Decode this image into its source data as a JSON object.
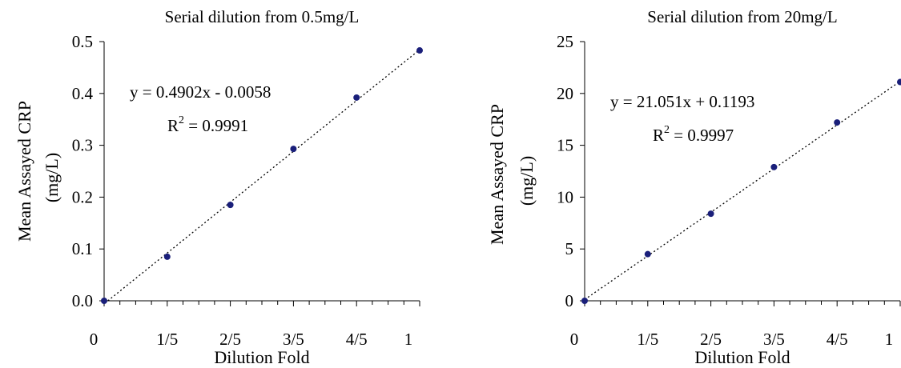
{
  "chart_data": [
    {
      "type": "scatter",
      "title": "Serial dilution from 0.5mg/L",
      "xlabel": "Dilution Fold",
      "ylabel_line1": "Mean Assayed CRP",
      "ylabel_line2": "(mg/L)",
      "x_ticks": [
        "0",
        "1/5",
        "2/5",
        "3/5",
        "4/5",
        "1"
      ],
      "y_ticks": [
        "0.0",
        "0.1",
        "0.2",
        "0.3",
        "0.4",
        "0.5"
      ],
      "xlim": [
        0,
        1
      ],
      "ylim": [
        0,
        0.5
      ],
      "x": [
        0,
        0.2,
        0.4,
        0.6,
        0.8,
        1.0
      ],
      "y": [
        0.0,
        0.085,
        0.185,
        0.293,
        0.392,
        0.483
      ],
      "trendline": {
        "slope": 0.4902,
        "intercept": -0.0058,
        "style": "dotted"
      },
      "equation": "y = 0.4902x - 0.0058",
      "r2_prefix": "R",
      "r2_exp": "2",
      "r2_value": " = 0.9991",
      "marker_color": "#1a1f7a",
      "grid": false
    },
    {
      "type": "scatter",
      "title": "Serial dilution from 20mg/L",
      "xlabel": "Dilution Fold",
      "ylabel_line1": "Mean Assayed CRP",
      "ylabel_line2": "(mg/L)",
      "x_ticks": [
        "0",
        "1/5",
        "2/5",
        "3/5",
        "4/5",
        "1"
      ],
      "y_ticks": [
        "0",
        "5",
        "10",
        "15",
        "20",
        "25"
      ],
      "xlim": [
        0,
        1
      ],
      "ylim": [
        0,
        25
      ],
      "x": [
        0,
        0.2,
        0.4,
        0.6,
        0.8,
        1.0
      ],
      "y": [
        0.0,
        4.5,
        8.4,
        12.9,
        17.2,
        21.1
      ],
      "trendline": {
        "slope": 21.051,
        "intercept": 0.1193,
        "style": "dotted"
      },
      "equation": "y = 21.051x + 0.1193",
      "r2_prefix": "R",
      "r2_exp": "2",
      "r2_value": " = 0.9997",
      "marker_color": "#1a1f7a",
      "grid": false
    }
  ]
}
